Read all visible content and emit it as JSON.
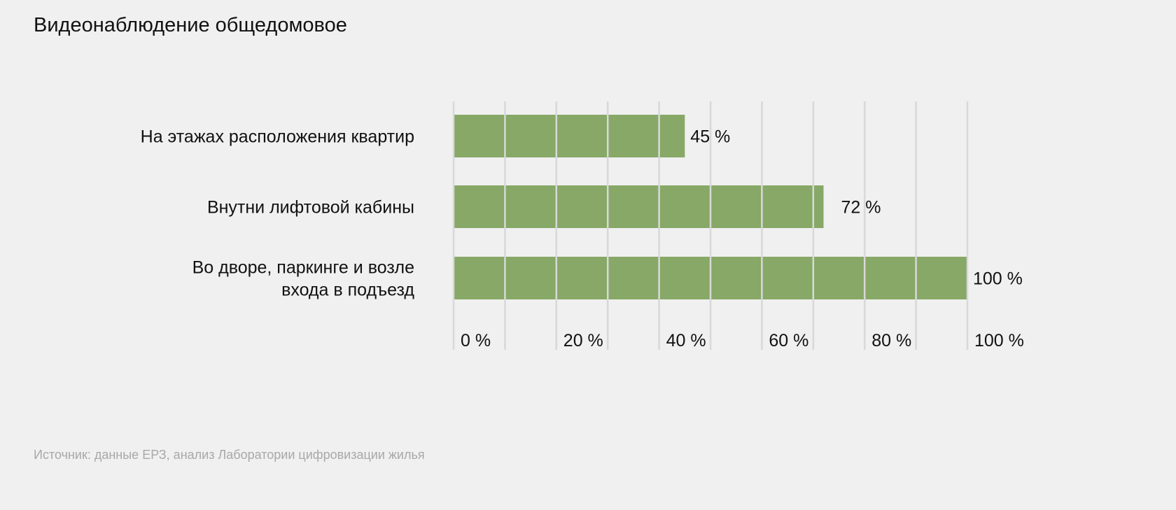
{
  "chart_data": {
    "type": "bar",
    "orientation": "horizontal",
    "title": "Видеонаблюдение общедомовое",
    "categories": [
      [
        "На этажах расположения квартир"
      ],
      [
        "Внутни лифтовой кабины"
      ],
      [
        "Во дворе, паркинге и возле",
        "входа в подъезд"
      ]
    ],
    "values": [
      45,
      72,
      100
    ],
    "value_labels": [
      "45 %",
      "72 %",
      "100 %"
    ],
    "xlim": [
      0,
      100
    ],
    "x_ticks": [
      0,
      20,
      40,
      60,
      80,
      100
    ],
    "x_tick_labels": [
      "0 %",
      "20 %",
      "40 %",
      "60 %",
      "80 %",
      "100 %"
    ],
    "grid": true,
    "bar_color": "#87a866",
    "grid_color": "#d8d8d8",
    "source": "Источник: данные ЕРЗ, анализ Лаборатории цифровизации жилья"
  }
}
